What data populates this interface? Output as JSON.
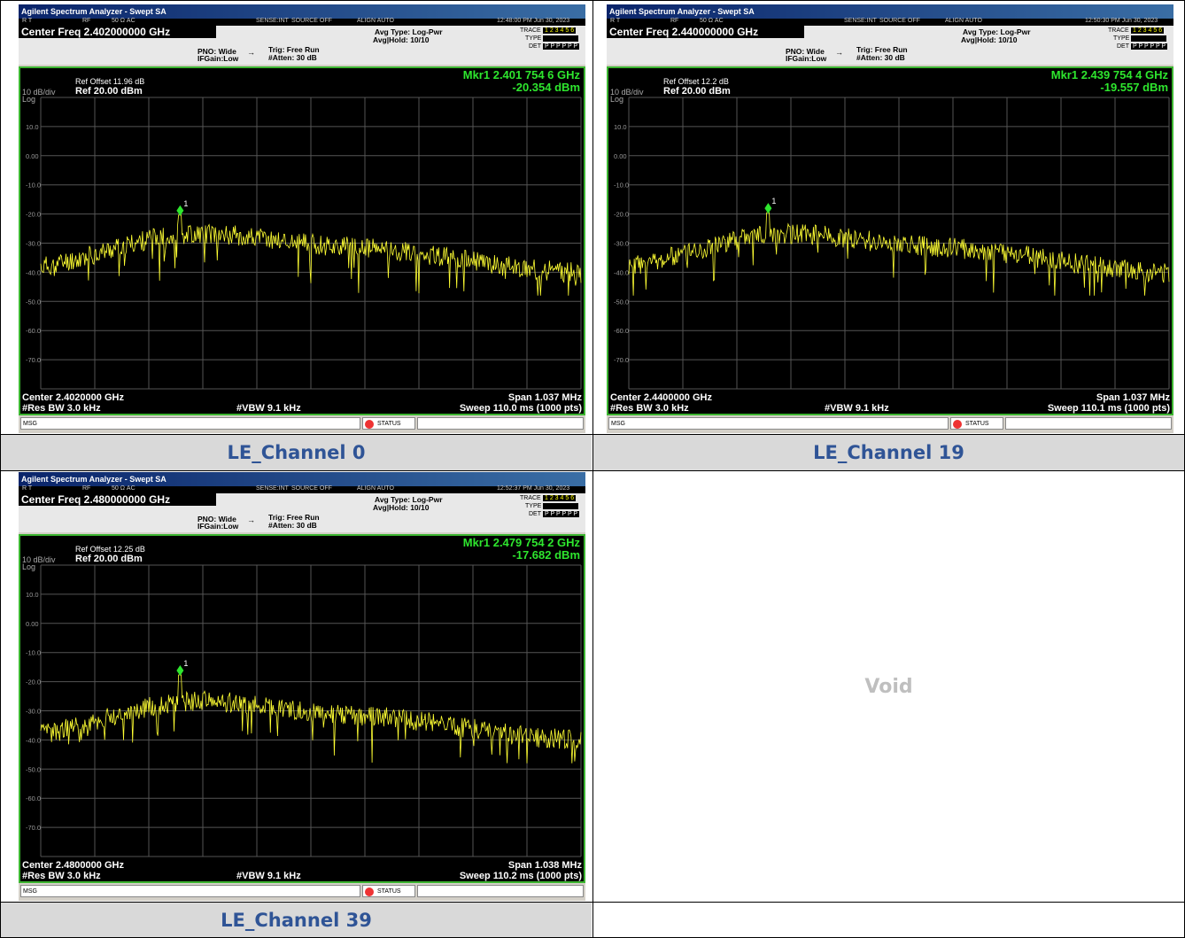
{
  "panels": [
    {
      "id": "ch0",
      "window_title": "Agilent Spectrum Analyzer - Swept SA",
      "topbar": {
        "left": "R   T",
        "rf": "RF",
        "imp": "50 Ω  AC",
        "sense": "SENSE:INT",
        "source": "SOURCE OFF",
        "align": "ALIGN AUTO",
        "datetime": "12:48:00 PM Jun 30, 2023"
      },
      "center_freq_label": "Center Freq 2.402000000 GHz",
      "pno": "PNO: Wide",
      "ifgain": "IFGain:Low",
      "trig": "Trig: Free Run",
      "atten": "#Atten: 30 dB",
      "avg_type": "Avg Type: Log-Pwr",
      "avg_hold": "Avg|Hold: 10/10",
      "trace_lbl": "TRACE",
      "type_lbl": "TYPE",
      "det_lbl": "DET",
      "trace_nums": "1 2 3 4 5 6",
      "det_vals": "P P P P P P",
      "ref_offset": "Ref Offset 11.96 dB",
      "scale": "10 dB/div",
      "ref_level": "Ref 20.00 dBm",
      "log": "Log",
      "marker_freq": "Mkr1 2.401 754 6 GHz",
      "marker_level": "-20.354 dBm",
      "marker_num": "1",
      "center_label": "Center 2.4020000 GHz",
      "res_bw": "#Res BW 3.0 kHz",
      "vbw": "#VBW 9.1 kHz",
      "span": "Span 1.037 MHz",
      "sweep": "Sweep  110.0 ms (1000 pts)",
      "msg": "MSG",
      "status": "STATUS",
      "marker_dbm": -20.354,
      "marker_x_frac": 0.258,
      "seed": 11
    },
    {
      "id": "ch19",
      "window_title": "Agilent Spectrum Analyzer - Swept SA",
      "topbar": {
        "left": "R   T",
        "rf": "RF",
        "imp": "50 Ω  AC",
        "sense": "SENSE:INT",
        "source": "SOURCE OFF",
        "align": "ALIGN AUTO",
        "datetime": "12:50:30 PM Jun 30, 2023"
      },
      "center_freq_label": "Center Freq 2.440000000 GHz",
      "pno": "PNO: Wide",
      "ifgain": "IFGain:Low",
      "trig": "Trig: Free Run",
      "atten": "#Atten: 30 dB",
      "avg_type": "Avg Type: Log-Pwr",
      "avg_hold": "Avg|Hold: 10/10",
      "trace_lbl": "TRACE",
      "type_lbl": "TYPE",
      "det_lbl": "DET",
      "trace_nums": "1 2 3 4 5 6",
      "det_vals": "P P P P P P",
      "ref_offset": "Ref Offset 12.2 dB",
      "scale": "10 dB/div",
      "ref_level": "Ref 20.00 dBm",
      "log": "Log",
      "marker_freq": "Mkr1 2.439 754 4 GHz",
      "marker_level": "-19.557 dBm",
      "marker_num": "1",
      "center_label": "Center 2.4400000 GHz",
      "res_bw": "#Res BW 3.0 kHz",
      "vbw": "#VBW 9.1 kHz",
      "span": "Span 1.037 MHz",
      "sweep": "Sweep  110.1 ms (1000 pts)",
      "msg": "MSG",
      "status": "STATUS",
      "marker_dbm": -19.557,
      "marker_x_frac": 0.258,
      "seed": 23
    },
    {
      "id": "ch39",
      "window_title": "Agilent Spectrum Analyzer - Swept SA",
      "topbar": {
        "left": "R   T",
        "rf": "RF",
        "imp": "50 Ω  AC",
        "sense": "SENSE:INT",
        "source": "SOURCE OFF",
        "align": "ALIGN AUTO",
        "datetime": "12:52:37 PM Jun 30, 2023"
      },
      "center_freq_label": "Center Freq 2.480000000 GHz",
      "pno": "PNO: Wide",
      "ifgain": "IFGain:Low",
      "trig": "Trig: Free Run",
      "atten": "#Atten: 30 dB",
      "avg_type": "Avg Type: Log-Pwr",
      "avg_hold": "Avg|Hold: 10/10",
      "trace_lbl": "TRACE",
      "type_lbl": "TYPE",
      "det_lbl": "DET",
      "trace_nums": "1 2 3 4 5 6",
      "det_vals": "P P P P P P",
      "ref_offset": "Ref Offset 12.25 dB",
      "scale": "10 dB/div",
      "ref_level": "Ref 20.00 dBm",
      "log": "Log",
      "marker_freq": "Mkr1 2.479 754 2 GHz",
      "marker_level": "-17.682 dBm",
      "marker_num": "1",
      "center_label": "Center 2.4800000 GHz",
      "res_bw": "#Res BW 3.0 kHz",
      "vbw": "#VBW 9.1 kHz",
      "span": "Span 1.038 MHz",
      "sweep": "Sweep  110.2 ms (1000 pts)",
      "msg": "MSG",
      "status": "STATUS",
      "marker_dbm": -17.682,
      "marker_x_frac": 0.258,
      "seed": 37
    }
  ],
  "y_ticks": [
    "10.0",
    "0.00",
    "-10.0",
    "-20.0",
    "-30.0",
    "-40.0",
    "-50.0",
    "-60.0",
    "-70.0"
  ],
  "captions": {
    "c0": "LE_Channel 0",
    "c19": "LE_Channel 19",
    "c39": "LE_Channel 39"
  },
  "void_label": "Void",
  "colors": {
    "trace": "#ffff33",
    "marker": "#2ee62e",
    "grid": "#555555",
    "caption_text": "#2f5496",
    "caption_bg": "#d9d9d9"
  }
}
